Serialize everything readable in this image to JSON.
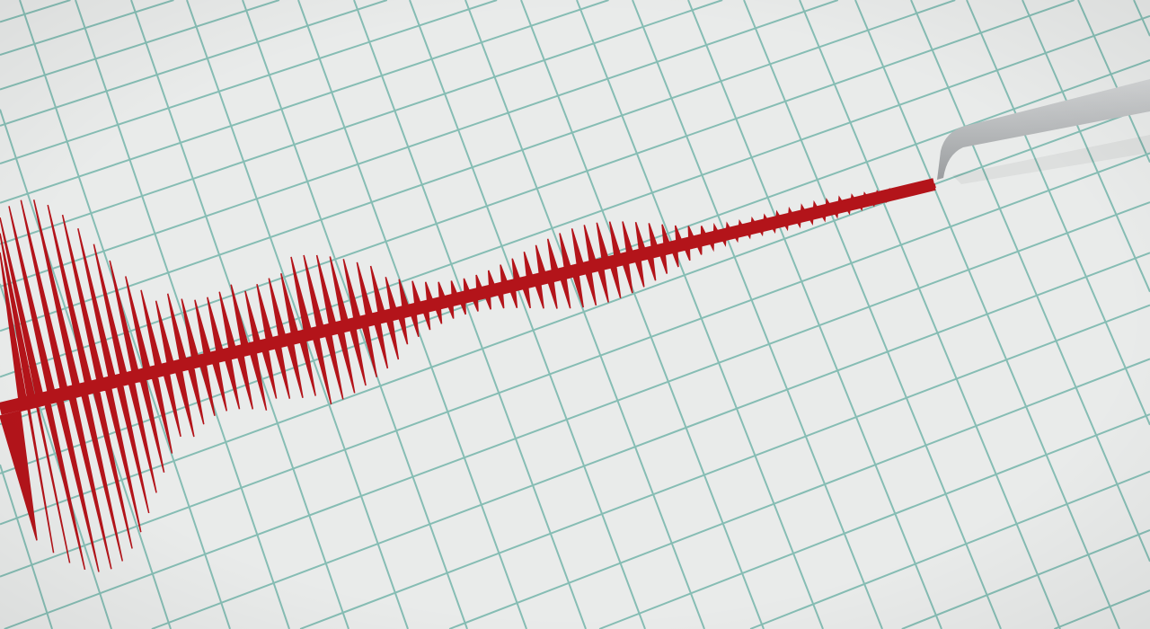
{
  "scene": {
    "subject": "seismograph-trace",
    "colors": {
      "paper": "#e9ebea",
      "grid": "#86bdb4",
      "trace": "#b3141a",
      "stylus": "#b9bcbd"
    }
  }
}
